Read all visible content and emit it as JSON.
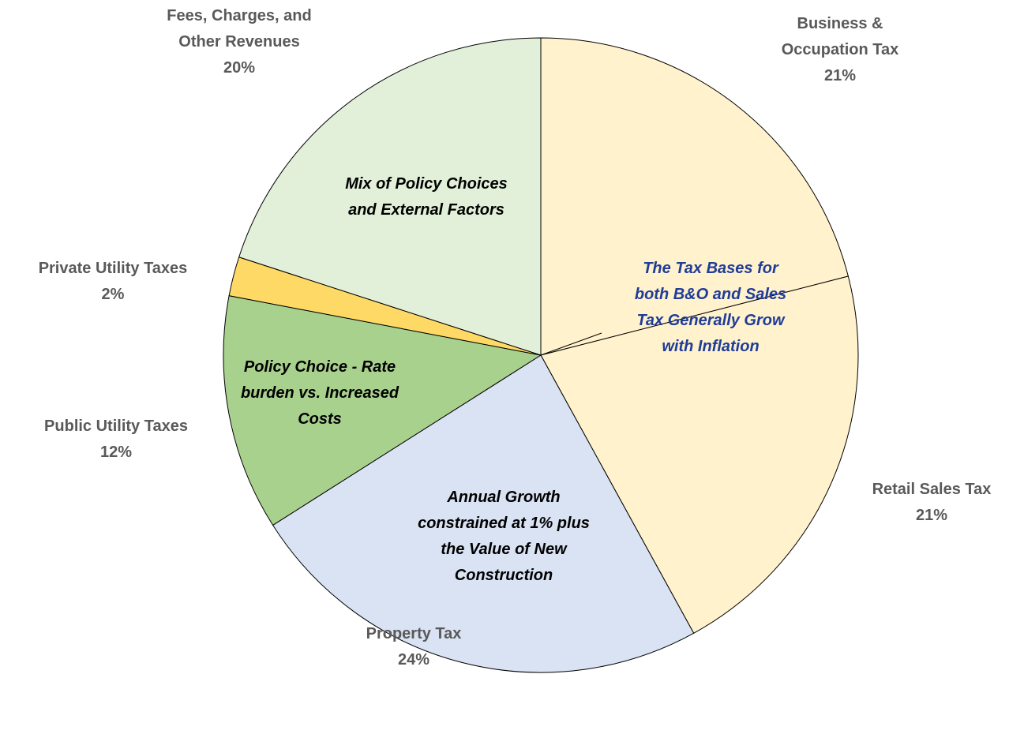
{
  "chart_data": {
    "type": "pie",
    "categories": [
      "Business & Occupation Tax",
      "Retail Sales Tax",
      "Property Tax",
      "Public Utility Taxes",
      "Private Utility Taxes",
      "Fees, Charges, and Other Revenues"
    ],
    "values": [
      21,
      21,
      24,
      12,
      2,
      20
    ],
    "value_labels": [
      "21%",
      "21%",
      "24%",
      "12%",
      "2%",
      "20%"
    ],
    "colors": [
      "#FFF2CC",
      "#FFF2CC",
      "#DAE3F3",
      "#A9D18E",
      "#FFD966",
      "#E2F0D9"
    ],
    "annotations": [
      {
        "text": "Mix of Policy Choices and External Factors",
        "color": "#000000"
      },
      {
        "text": "The Tax Bases for both B&O and Sales Tax Generally Grow with Inflation",
        "color": "#1F3C99"
      },
      {
        "text": "Policy Choice - Rate burden vs. Increased Costs",
        "color": "#000000"
      },
      {
        "text": "Annual Growth constrained at 1% plus the Value of New Construction",
        "color": "#000000"
      }
    ]
  }
}
